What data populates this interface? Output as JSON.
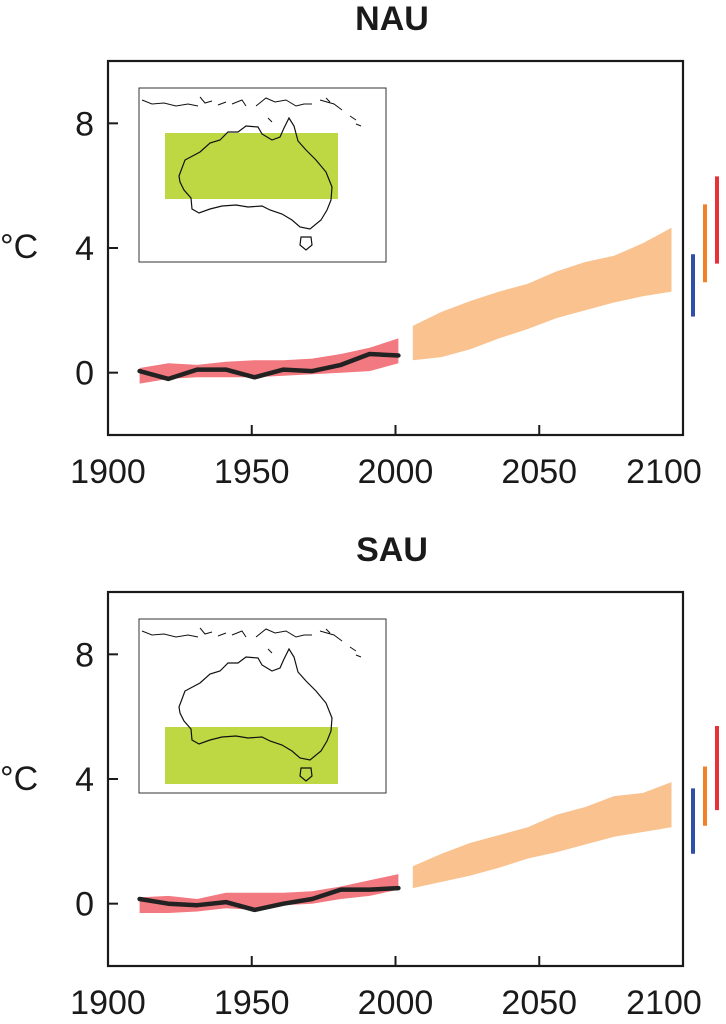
{
  "chart_data": [
    {
      "type": "area",
      "title": "NAU",
      "ylabel": "°C",
      "xlim": [
        1900,
        2100
      ],
      "ylim": [
        -2,
        10
      ],
      "xticks": [
        "1900",
        "1950",
        "2000",
        "2050",
        "2100"
      ],
      "yticks": [
        "0",
        "4",
        "8"
      ],
      "inset_map": {
        "region": "Northern Australia",
        "highlight_color": "#bdd843",
        "lat_band": "north"
      },
      "series": [
        {
          "kind": "band",
          "color": "#f2797f",
          "x": [
            1911,
            1921,
            1931,
            1941,
            1951,
            1961,
            1971,
            1981,
            1991,
            2001
          ],
          "lower": [
            -0.35,
            -0.2,
            -0.15,
            -0.15,
            -0.15,
            -0.1,
            -0.05,
            0.0,
            0.05,
            0.3
          ],
          "upper": [
            0.15,
            0.3,
            0.25,
            0.35,
            0.4,
            0.4,
            0.45,
            0.6,
            0.8,
            1.1
          ]
        },
        {
          "kind": "band",
          "color": "#f9c28f",
          "x": [
            2006,
            2016,
            2026,
            2036,
            2046,
            2056,
            2066,
            2076,
            2086,
            2096
          ],
          "lower": [
            0.4,
            0.5,
            0.75,
            1.1,
            1.4,
            1.75,
            2.0,
            2.25,
            2.45,
            2.6
          ],
          "upper": [
            1.5,
            1.95,
            2.3,
            2.6,
            2.85,
            3.25,
            3.55,
            3.75,
            4.15,
            4.65
          ]
        },
        {
          "kind": "line",
          "color": "#222222",
          "x": [
            1911,
            1921,
            1931,
            1941,
            1951,
            1961,
            1971,
            1981,
            1991,
            2001
          ],
          "values": [
            0.05,
            -0.2,
            0.1,
            0.1,
            -0.15,
            0.1,
            0.05,
            0.25,
            0.6,
            0.55
          ]
        }
      ],
      "range_bars": [
        {
          "color": "#2f4fa8",
          "low": 1.8,
          "high": 3.8
        },
        {
          "color": "#f08126",
          "low": 2.9,
          "high": 5.4
        },
        {
          "color": "#e8323a",
          "low": 3.5,
          "high": 6.3
        }
      ]
    },
    {
      "type": "area",
      "title": "SAU",
      "ylabel": "°C",
      "xlim": [
        1900,
        2100
      ],
      "ylim": [
        -2,
        10
      ],
      "xticks": [
        "1900",
        "1950",
        "2000",
        "2050",
        "2100"
      ],
      "yticks": [
        "0",
        "4",
        "8"
      ],
      "inset_map": {
        "region": "Southern Australia",
        "highlight_color": "#bdd843",
        "lat_band": "south"
      },
      "series": [
        {
          "kind": "band",
          "color": "#f2797f",
          "x": [
            1911,
            1921,
            1931,
            1941,
            1951,
            1961,
            1971,
            1981,
            1991,
            2001
          ],
          "lower": [
            -0.3,
            -0.3,
            -0.25,
            -0.15,
            -0.2,
            -0.05,
            0.0,
            0.15,
            0.25,
            0.45
          ],
          "upper": [
            0.2,
            0.25,
            0.15,
            0.35,
            0.35,
            0.35,
            0.4,
            0.55,
            0.75,
            0.95
          ]
        },
        {
          "kind": "band",
          "color": "#f9c28f",
          "x": [
            2006,
            2016,
            2026,
            2036,
            2046,
            2056,
            2066,
            2076,
            2086,
            2096
          ],
          "lower": [
            0.5,
            0.7,
            0.9,
            1.15,
            1.45,
            1.65,
            1.9,
            2.15,
            2.3,
            2.45
          ],
          "upper": [
            1.2,
            1.6,
            1.95,
            2.2,
            2.45,
            2.85,
            3.1,
            3.45,
            3.55,
            3.9
          ]
        },
        {
          "kind": "line",
          "color": "#222222",
          "x": [
            1911,
            1921,
            1931,
            1941,
            1951,
            1961,
            1971,
            1981,
            1991,
            2001
          ],
          "values": [
            0.15,
            0.0,
            -0.05,
            0.05,
            -0.2,
            0.0,
            0.15,
            0.45,
            0.45,
            0.5
          ]
        }
      ],
      "range_bars": [
        {
          "color": "#2f4fa8",
          "low": 1.6,
          "high": 3.7
        },
        {
          "color": "#f08126",
          "low": 2.5,
          "high": 4.4
        },
        {
          "color": "#e8323a",
          "low": 3.0,
          "high": 5.7
        }
      ]
    }
  ]
}
